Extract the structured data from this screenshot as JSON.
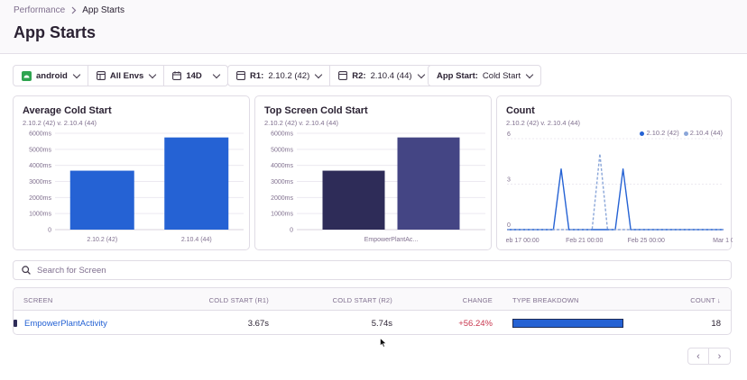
{
  "breadcrumb": {
    "parent": "Performance",
    "current": "App Starts"
  },
  "page_title": "App Starts",
  "filters": {
    "platform": "android",
    "envs": "All Envs",
    "period": "14D",
    "r1_label": "R1:",
    "r1_value": "2.10.2 (42)",
    "r2_label": "R2:",
    "r2_value": "2.10.4 (44)",
    "app_start_label": "App Start:",
    "app_start_value": "Cold Start"
  },
  "colors": {
    "accent": "#2562d4",
    "navy": "#2e2c58",
    "indigo": "#444584",
    "light_series": "#8aa6d9",
    "negative": "#c8364e"
  },
  "icons": {
    "platform": "android-icon",
    "envs": "grid-icon",
    "period": "calendar-icon",
    "search": "search-icon"
  },
  "chart_data": [
    {
      "type": "bar",
      "title": "Average Cold Start",
      "subtitle": "2.10.2 (42) v. 2.10.4 (44)",
      "categories": [
        "2.10.2 (42)",
        "2.10.4 (44)"
      ],
      "values": [
        3670,
        5740
      ],
      "yticks": [
        "0",
        "1000ms",
        "2000ms",
        "3000ms",
        "4000ms",
        "5000ms",
        "6000ms"
      ],
      "ylim": [
        0,
        6000
      ],
      "colors": [
        "#2562d4",
        "#2562d4"
      ],
      "grid": true
    },
    {
      "type": "bar",
      "title": "Top Screen Cold Start",
      "subtitle": "2.10.2 (42) v. 2.10.4 (44)",
      "categories": [
        "EmpowerPlantAc..."
      ],
      "series": [
        {
          "values": [
            3670
          ]
        },
        {
          "values": [
            5740
          ]
        }
      ],
      "yticks": [
        "0",
        "1000ms",
        "2000ms",
        "3000ms",
        "4000ms",
        "5000ms",
        "6000ms"
      ],
      "ylim": [
        0,
        6000
      ],
      "colors": [
        "#2e2c58",
        "#444584"
      ],
      "grid": true
    },
    {
      "type": "line",
      "title": "Count",
      "subtitle": "2.10.2 (42) v. 2.10.4 (44)",
      "legend_position": "top-right",
      "xlim": [
        "2024-02-16",
        "2024-03-01"
      ],
      "xticks": [
        {
          "x": "2024-02-17",
          "label": "eb 17 00:00"
        },
        {
          "x": "2024-02-21",
          "label": "Feb 21 00:00"
        },
        {
          "x": "2024-02-25",
          "label": "Feb 25 00:00"
        },
        {
          "x": "2024-03-01",
          "label": "Mar 1 0"
        }
      ],
      "yticks": [
        "0",
        "3",
        "6"
      ],
      "ylim": [
        0,
        6
      ],
      "series": [
        {
          "name": "2.10.2 (42)",
          "color": "#2562d4",
          "dashed": false,
          "points": [
            [
              "2024-02-16",
              0
            ],
            [
              "2024-02-19",
              0
            ],
            [
              "2024-02-19 12:00",
              4
            ],
            [
              "2024-02-20",
              0
            ],
            [
              "2024-02-23",
              0
            ],
            [
              "2024-02-23 12:00",
              4
            ],
            [
              "2024-02-24",
              0
            ],
            [
              "2024-03-01",
              0
            ]
          ]
        },
        {
          "name": "2.10.4 (44)",
          "color": "#8aa6d9",
          "dashed": true,
          "points": [
            [
              "2024-02-16",
              0
            ],
            [
              "2024-02-21 12:00",
              0
            ],
            [
              "2024-02-22",
              5
            ],
            [
              "2024-02-22 12:00",
              0
            ],
            [
              "2024-03-01",
              0
            ]
          ]
        }
      ],
      "grid": true
    }
  ],
  "search": {
    "placeholder": "Search for Screen"
  },
  "table": {
    "headers": [
      "SCREEN",
      "COLD START (R1)",
      "COLD START (R2)",
      "CHANGE",
      "TYPE BREAKDOWN",
      "COUNT ↓"
    ],
    "rows": [
      {
        "screen": "EmpowerPlantActivity",
        "r1": "3.67s",
        "r2": "5.74s",
        "change": "+56.24%",
        "breakdown": 1.0,
        "count": "18"
      }
    ]
  },
  "pagination": {
    "prev": "‹",
    "next": "›"
  }
}
